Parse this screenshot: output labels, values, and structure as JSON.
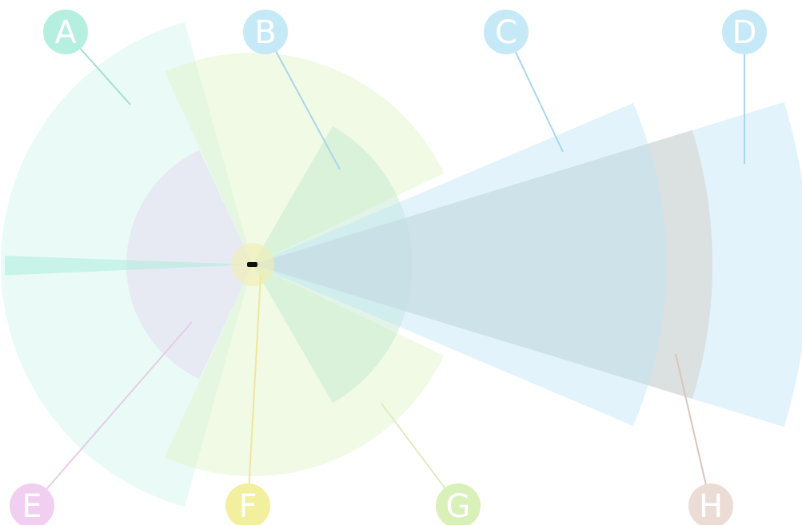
{
  "markers": [
    {
      "label": "A"
    },
    {
      "label": "B"
    },
    {
      "label": "C"
    },
    {
      "label": "D"
    },
    {
      "label": "E"
    },
    {
      "label": "F"
    },
    {
      "label": "G"
    },
    {
      "label": "H"
    }
  ]
}
